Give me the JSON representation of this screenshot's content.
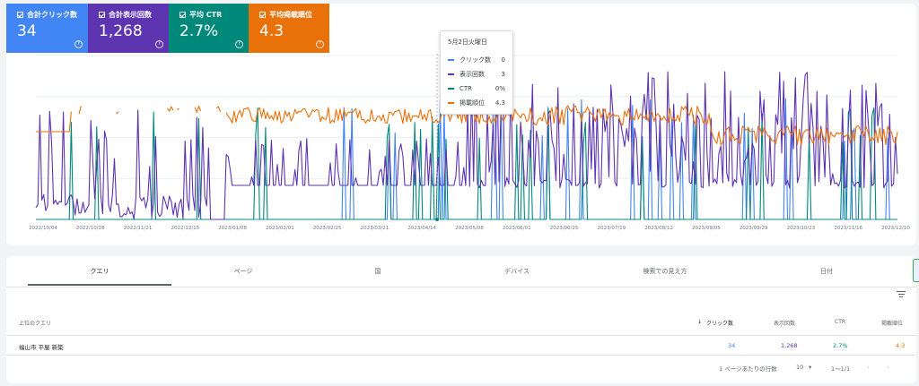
{
  "metrics": [
    {
      "label": "合計クリック数",
      "value": "34",
      "color": "#4285f4"
    },
    {
      "label": "合計表示回数",
      "value": "1,268",
      "color": "#5e35b1"
    },
    {
      "label": "平均 CTR",
      "value": "2.7%",
      "color": "#00897b"
    },
    {
      "label": "平均掲載順位",
      "value": "4.3",
      "color": "#e8710a"
    }
  ],
  "tooltip": {
    "date": "5月2日火曜日",
    "rows": [
      {
        "label": "クリック数",
        "value": "0",
        "color": "#4285f4"
      },
      {
        "label": "表示回数",
        "value": "3",
        "color": "#5e35b1"
      },
      {
        "label": "CTR",
        "value": "0%",
        "color": "#00897b"
      },
      {
        "label": "掲載順位",
        "value": "4.3",
        "color": "#e8710a"
      }
    ]
  },
  "chart_data": {
    "type": "line",
    "x_ticks": [
      "2022/10/04",
      "2022/10/28",
      "2022/11/21",
      "2022/12/15",
      "2023/01/08",
      "2023/02/01",
      "2023/02/25",
      "2023/03/21",
      "2023/04/14",
      "2023/05/08",
      "2023/06/01",
      "2023/06/25",
      "2023/07/19",
      "2023/08/12",
      "2023/09/05",
      "2023/09/29",
      "2023/10/23",
      "2023/11/16",
      "2023/12/10"
    ],
    "series": [
      {
        "name": "クリック数",
        "color": "#4285f4"
      },
      {
        "name": "表示回数",
        "color": "#5e35b1"
      },
      {
        "name": "CTR",
        "color": "#00897b"
      },
      {
        "name": "掲載順位",
        "color": "#e8710a"
      }
    ],
    "grid": true,
    "legend": "none"
  },
  "tabs": [
    "クエリ",
    "ページ",
    "国",
    "デバイス",
    "検索での見え方",
    "日付"
  ],
  "table": {
    "headers": [
      "上位のクエリ",
      "クリック数",
      "表示回数",
      "CTR",
      "掲載順位"
    ],
    "rows": [
      {
        "query": "福山市 平屋 新築",
        "clicks": "34",
        "impressions": "1,268",
        "ctr": "2.7%",
        "position": "4.3"
      }
    ]
  },
  "pager": {
    "rows_label": "1 ページあたりの行数",
    "rows_value": "10",
    "range": "1〜1/1"
  }
}
